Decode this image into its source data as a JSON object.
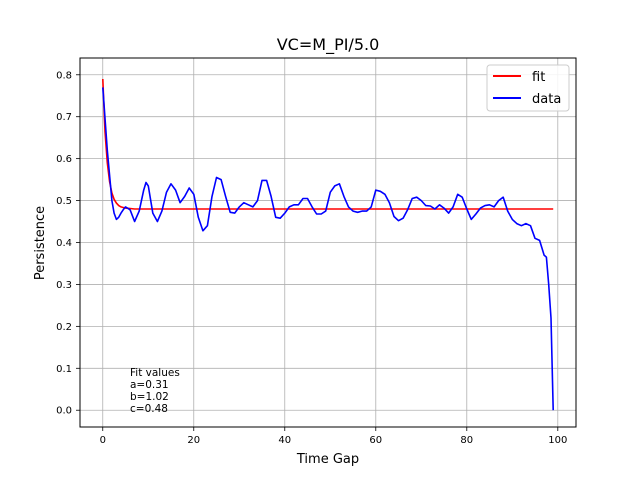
{
  "chart_data": {
    "type": "line",
    "title": "VC=M_PI/5.0",
    "xlabel": "Time Gap",
    "ylabel": "Persistence",
    "xlim": [
      -5,
      104
    ],
    "ylim": [
      -0.04,
      0.84
    ],
    "xticks": [
      0,
      20,
      40,
      60,
      80,
      100
    ],
    "yticks": [
      0.0,
      0.1,
      0.2,
      0.3,
      0.4,
      0.5,
      0.6,
      0.7,
      0.8
    ],
    "xtick_labels": [
      "0",
      "20",
      "40",
      "60",
      "80",
      "100"
    ],
    "ytick_labels": [
      "0.0",
      "0.1",
      "0.2",
      "0.3",
      "0.4",
      "0.5",
      "0.6",
      "0.7",
      "0.8"
    ],
    "grid": true,
    "legend": {
      "placement": "top-right",
      "entries": [
        "fit",
        "data"
      ]
    },
    "annotation": [
      "Fit values",
      "a=0.31",
      "b=1.02",
      "c=0.48"
    ],
    "series": [
      {
        "name": "fit",
        "color": "#ff0000",
        "x": [
          0,
          0.5,
          1,
          1.5,
          2,
          2.5,
          3,
          3.5,
          4,
          5,
          6,
          7,
          8,
          10,
          15,
          20,
          30,
          40,
          50,
          60,
          70,
          80,
          90,
          99
        ],
        "y": [
          0.79,
          0.665,
          0.59,
          0.545,
          0.518,
          0.503,
          0.494,
          0.488,
          0.485,
          0.482,
          0.481,
          0.48,
          0.48,
          0.48,
          0.48,
          0.48,
          0.48,
          0.48,
          0.48,
          0.48,
          0.48,
          0.48,
          0.48,
          0.48
        ]
      },
      {
        "name": "data",
        "color": "#0000ff",
        "x": [
          0,
          1,
          2,
          2.5,
          3,
          3.5,
          4,
          4.5,
          5,
          6,
          7,
          8,
          9,
          9.5,
          10,
          11,
          12,
          13,
          14,
          15,
          16,
          17,
          18,
          19,
          20,
          21,
          22,
          23,
          24,
          25,
          26,
          27,
          28,
          29,
          30,
          31,
          32,
          33,
          34,
          35,
          36,
          37,
          38,
          39,
          40,
          41,
          42,
          43,
          44,
          45,
          46,
          47,
          48,
          49,
          50,
          51,
          52,
          53,
          54,
          55,
          56,
          57,
          58,
          59,
          60,
          61,
          62,
          63,
          64,
          65,
          66,
          67,
          68,
          69,
          70,
          71,
          72,
          73,
          74,
          75,
          76,
          77,
          78,
          79,
          80,
          81,
          82,
          83,
          84,
          85,
          86,
          87,
          88,
          89,
          90,
          91,
          92,
          93,
          94,
          95,
          96,
          97,
          97.5,
          98,
          98.5,
          99
        ],
        "y": [
          0.77,
          0.62,
          0.5,
          0.47,
          0.455,
          0.46,
          0.47,
          0.478,
          0.485,
          0.478,
          0.45,
          0.475,
          0.525,
          0.543,
          0.535,
          0.47,
          0.45,
          0.475,
          0.52,
          0.54,
          0.525,
          0.495,
          0.51,
          0.53,
          0.515,
          0.46,
          0.428,
          0.44,
          0.51,
          0.555,
          0.55,
          0.51,
          0.472,
          0.47,
          0.485,
          0.495,
          0.49,
          0.485,
          0.5,
          0.548,
          0.548,
          0.51,
          0.46,
          0.458,
          0.47,
          0.485,
          0.49,
          0.49,
          0.505,
          0.505,
          0.485,
          0.468,
          0.468,
          0.475,
          0.52,
          0.535,
          0.54,
          0.51,
          0.485,
          0.475,
          0.472,
          0.475,
          0.475,
          0.485,
          0.525,
          0.522,
          0.515,
          0.495,
          0.462,
          0.452,
          0.458,
          0.478,
          0.505,
          0.508,
          0.5,
          0.488,
          0.487,
          0.48,
          0.49,
          0.482,
          0.47,
          0.485,
          0.515,
          0.508,
          0.48,
          0.455,
          0.468,
          0.482,
          0.488,
          0.49,
          0.485,
          0.5,
          0.508,
          0.475,
          0.455,
          0.445,
          0.44,
          0.445,
          0.44,
          0.41,
          0.405,
          0.37,
          0.365,
          0.3,
          0.22,
          0.0
        ]
      }
    ]
  }
}
